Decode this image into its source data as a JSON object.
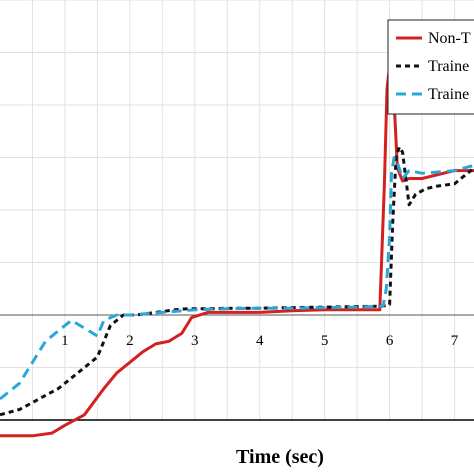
{
  "chart_data": {
    "type": "line",
    "xlabel": "Time (sec)",
    "ylabel": "",
    "title": "",
    "xlim": [
      0,
      7.3
    ],
    "ylim": [
      -2.0,
      6.0
    ],
    "x_ticks": [
      1,
      2,
      3,
      4,
      5,
      6,
      7
    ],
    "grid": true,
    "legend_position": "top-right",
    "series": [
      {
        "name": "Non-T",
        "color": "#d42020",
        "dash": "solid",
        "x": [
          0,
          0.3,
          0.5,
          0.8,
          1.0,
          1.3,
          1.6,
          1.8,
          2.0,
          2.2,
          2.4,
          2.6,
          2.8,
          2.95,
          3.2,
          3.5,
          4.0,
          4.5,
          5.0,
          5.5,
          5.85,
          5.92,
          5.96,
          6.0,
          6.04,
          6.08,
          6.12,
          6.2,
          6.3,
          6.5,
          7.0,
          7.3
        ],
        "y": [
          -2.3,
          -2.3,
          -2.3,
          -2.25,
          -2.1,
          -1.9,
          -1.4,
          -1.1,
          -0.9,
          -0.7,
          -0.55,
          -0.5,
          -0.35,
          -0.05,
          0.05,
          0.05,
          0.05,
          0.08,
          0.1,
          0.1,
          0.1,
          2.5,
          4.3,
          4.75,
          4.5,
          3.8,
          2.8,
          2.55,
          2.6,
          2.6,
          2.75,
          2.75
        ]
      },
      {
        "name": "Traine",
        "color": "#111111",
        "dash": "5,4",
        "x": [
          0,
          0.3,
          0.6,
          0.9,
          1.2,
          1.5,
          1.7,
          1.9,
          2.1,
          2.4,
          2.7,
          2.9,
          3.2,
          3.6,
          4.0,
          4.5,
          5.0,
          5.5,
          5.9,
          6.0,
          6.05,
          6.1,
          6.15,
          6.2,
          6.3,
          6.4,
          6.55,
          6.7,
          7.0,
          7.3
        ],
        "y": [
          -1.9,
          -1.8,
          -1.6,
          -1.4,
          -1.1,
          -0.8,
          -0.2,
          0.0,
          0.0,
          0.05,
          0.1,
          0.12,
          0.12,
          0.13,
          0.13,
          0.14,
          0.15,
          0.16,
          0.17,
          0.2,
          1.8,
          3.0,
          3.2,
          3.1,
          2.1,
          2.3,
          2.4,
          2.45,
          2.5,
          2.8
        ]
      },
      {
        "name": "Traine",
        "color": "#2aa7d8",
        "dash": "10,6",
        "x": [
          0,
          0.3,
          0.5,
          0.7,
          0.9,
          1.1,
          1.3,
          1.5,
          1.6,
          1.8,
          2.0,
          2.5,
          3.0,
          3.5,
          4.0,
          4.5,
          5.0,
          5.5,
          5.9,
          5.95,
          6.0,
          6.03,
          6.07,
          6.12,
          6.2,
          6.3,
          6.5,
          7.0,
          7.3
        ],
        "y": [
          -1.6,
          -1.3,
          -0.9,
          -0.5,
          -0.3,
          -0.1,
          -0.25,
          -0.4,
          -0.1,
          0.0,
          0.0,
          0.05,
          0.1,
          0.12,
          0.13,
          0.13,
          0.14,
          0.15,
          0.17,
          0.5,
          1.5,
          2.7,
          3.0,
          2.9,
          2.6,
          2.75,
          2.7,
          2.75,
          2.85
        ]
      }
    ]
  }
}
